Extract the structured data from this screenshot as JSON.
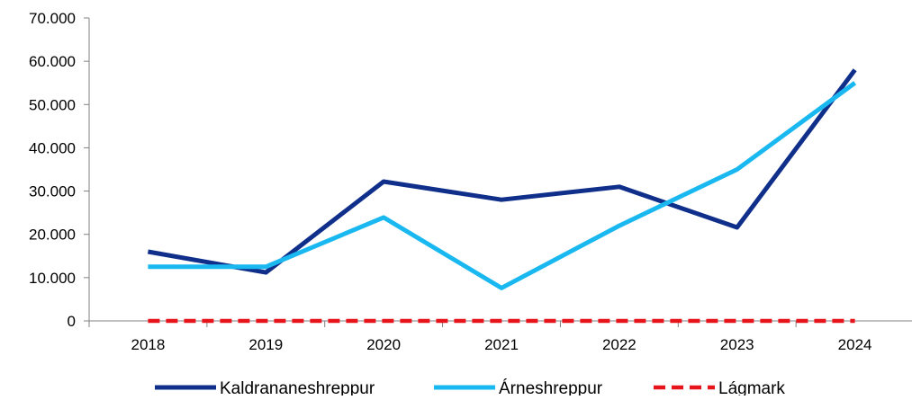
{
  "chart_data": {
    "type": "line",
    "categories": [
      "2018",
      "2019",
      "2020",
      "2021",
      "2022",
      "2023",
      "2024"
    ],
    "ylim": [
      0,
      70000
    ],
    "yticks": [
      0,
      10000,
      20000,
      30000,
      40000,
      50000,
      60000,
      70000
    ],
    "ytick_labels": [
      "0",
      "10.000",
      "20.000",
      "30.000",
      "40.000",
      "50.000",
      "60.000",
      "70.000"
    ],
    "grid": false,
    "legend_position": "bottom",
    "series": [
      {
        "name": "Kaldrananeshreppur",
        "color": "#0f2f8a",
        "style": "solid",
        "values": [
          16000,
          11200,
          32200,
          28000,
          31000,
          21600,
          58000
        ]
      },
      {
        "name": "Árneshreppur",
        "color": "#1ab8f0",
        "style": "solid",
        "values": [
          12500,
          12500,
          23900,
          7600,
          22000,
          35000,
          55000
        ]
      },
      {
        "name": "Lágmark",
        "color": "#e8141b",
        "style": "dashed",
        "values": [
          0,
          0,
          0,
          0,
          0,
          0,
          0
        ]
      }
    ]
  }
}
